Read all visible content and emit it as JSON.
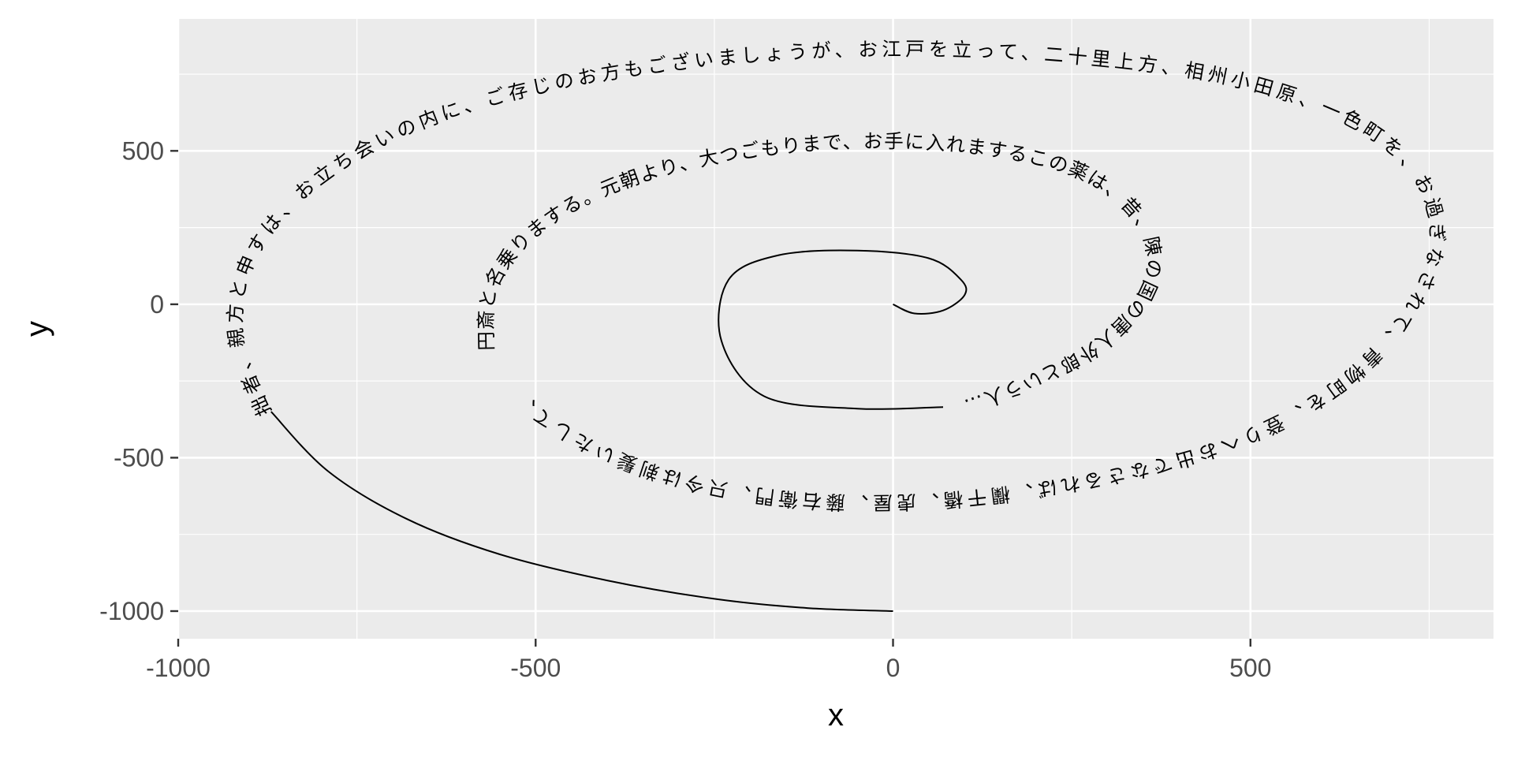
{
  "chart_data": {
    "type": "line",
    "title": "",
    "xlabel": "x",
    "ylabel": "y",
    "xlim": [
      -1000,
      840
    ],
    "ylim": [
      -1090,
      930
    ],
    "x_ticks": [
      -1000,
      -500,
      0,
      500
    ],
    "y_ticks": [
      -1000,
      -500,
      0,
      500
    ],
    "x_tick_labels": [
      "-1000",
      "-500",
      "0",
      "500"
    ],
    "y_tick_labels": [
      "-1000",
      "-500",
      "0",
      "500"
    ],
    "grid": true,
    "legend": "none",
    "background": "#ebebeb",
    "grid_color": "#ffffff",
    "series": [
      {
        "values": [
          {
            "x": 0,
            "y": -1000
          },
          {
            "x": -120,
            "y": -990
          },
          {
            "x": -250,
            "y": -960
          },
          {
            "x": -400,
            "y": -900
          },
          {
            "x": -550,
            "y": -815
          },
          {
            "x": -680,
            "y": -700
          },
          {
            "x": -790,
            "y": -545
          },
          {
            "x": -870,
            "y": -350
          },
          {
            "x": -910,
            "y": -100
          },
          {
            "x": -890,
            "y": 150
          },
          {
            "x": -800,
            "y": 390
          },
          {
            "x": -650,
            "y": 580
          },
          {
            "x": -450,
            "y": 710
          },
          {
            "x": -200,
            "y": 790
          },
          {
            "x": 50,
            "y": 810
          },
          {
            "x": 280,
            "y": 780
          },
          {
            "x": 480,
            "y": 710
          },
          {
            "x": 640,
            "y": 580
          },
          {
            "x": 730,
            "y": 400
          },
          {
            "x": 750,
            "y": 180
          },
          {
            "x": 700,
            "y": -60
          },
          {
            "x": 600,
            "y": -280
          },
          {
            "x": 450,
            "y": -450
          },
          {
            "x": 260,
            "y": -560
          },
          {
            "x": 50,
            "y": -620
          },
          {
            "x": -160,
            "y": -610
          },
          {
            "x": -340,
            "y": -520
          },
          {
            "x": -480,
            "y": -360
          },
          {
            "x": -560,
            "y": -150
          },
          {
            "x": -550,
            "y": 70
          },
          {
            "x": -470,
            "y": 270
          },
          {
            "x": -320,
            "y": 420
          },
          {
            "x": -120,
            "y": 500
          },
          {
            "x": 80,
            "y": 500
          },
          {
            "x": 250,
            "y": 420
          },
          {
            "x": 340,
            "y": 260
          },
          {
            "x": 350,
            "y": 70
          },
          {
            "x": 280,
            "y": -120
          },
          {
            "x": 160,
            "y": -260
          },
          {
            "x": 70,
            "y": -335
          },
          {
            "x": -50,
            "y": -340
          },
          {
            "x": -180,
            "y": -300
          },
          {
            "x": -240,
            "y": -120
          },
          {
            "x": -230,
            "y": 80
          },
          {
            "x": -160,
            "y": 160
          },
          {
            "x": -50,
            "y": 175
          },
          {
            "x": 50,
            "y": 150
          },
          {
            "x": 95,
            "y": 80
          },
          {
            "x": 100,
            "y": 30
          },
          {
            "x": 70,
            "y": -20
          },
          {
            "x": 30,
            "y": -30
          },
          {
            "x": 0,
            "y": 0
          }
        ]
      }
    ],
    "annotations": {
      "outer_text": "拙者、親方と申すは、お立ち会いの内に、ご存じのお方もございましょうが、お江戸を立って、二十里上方、相州小田原、一色町を、お過ぎなされて、青物町を、登りへお出でなさるれば、欄干橋、虎屋、藤右衛門、只今は剃髪いたして、",
      "inner_text": "円斎と名乗りまする。元朝より、大つごもりまで、お手に入れまするこの薬は、昔、陳の国の唐人外郎という人…"
    }
  }
}
